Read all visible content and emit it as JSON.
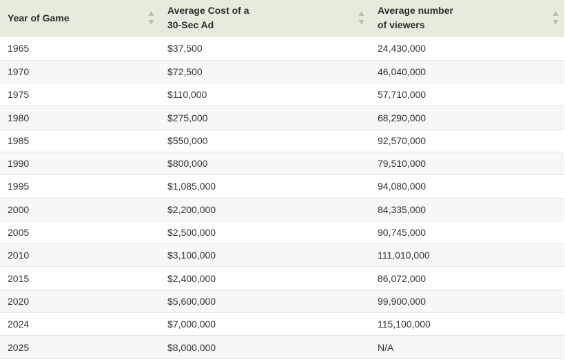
{
  "table": {
    "headers": [
      {
        "line1": "Year of Game",
        "line2": ""
      },
      {
        "line1": "Average Cost of a",
        "line2": "30-Sec Ad"
      },
      {
        "line1": "Average number",
        "line2": "of viewers"
      }
    ],
    "rows": [
      [
        "1965",
        "$37,500",
        "24,430,000"
      ],
      [
        "1970",
        "$72,500",
        "46,040,000"
      ],
      [
        "1975",
        "$110,000",
        "57,710,000"
      ],
      [
        "1980",
        "$275,000",
        "68,290,000"
      ],
      [
        "1985",
        "$550,000",
        "92,570,000"
      ],
      [
        "1990",
        "$800,000",
        "79,510,000"
      ],
      [
        "1995",
        "$1,085,000",
        "94,080,000"
      ],
      [
        "2000",
        "$2,200,000",
        "84,335,000"
      ],
      [
        "2005",
        "$2,500,000",
        "90,745,000"
      ],
      [
        "2010",
        "$3,100,000",
        "111,010,000"
      ],
      [
        "2015",
        "$2,400,000",
        "86,072,000"
      ],
      [
        "2020",
        "$5,600,000",
        "99,900,000"
      ],
      [
        "2024",
        "$7,000,000",
        "115,100,000"
      ],
      [
        "2025",
        "$8,000,000",
        "N/A"
      ]
    ]
  },
  "colors": {
    "header_bg": "#e6ecdd",
    "row_alt_bg": "#f7f7f7",
    "sort_icon": "#b8beb2"
  }
}
